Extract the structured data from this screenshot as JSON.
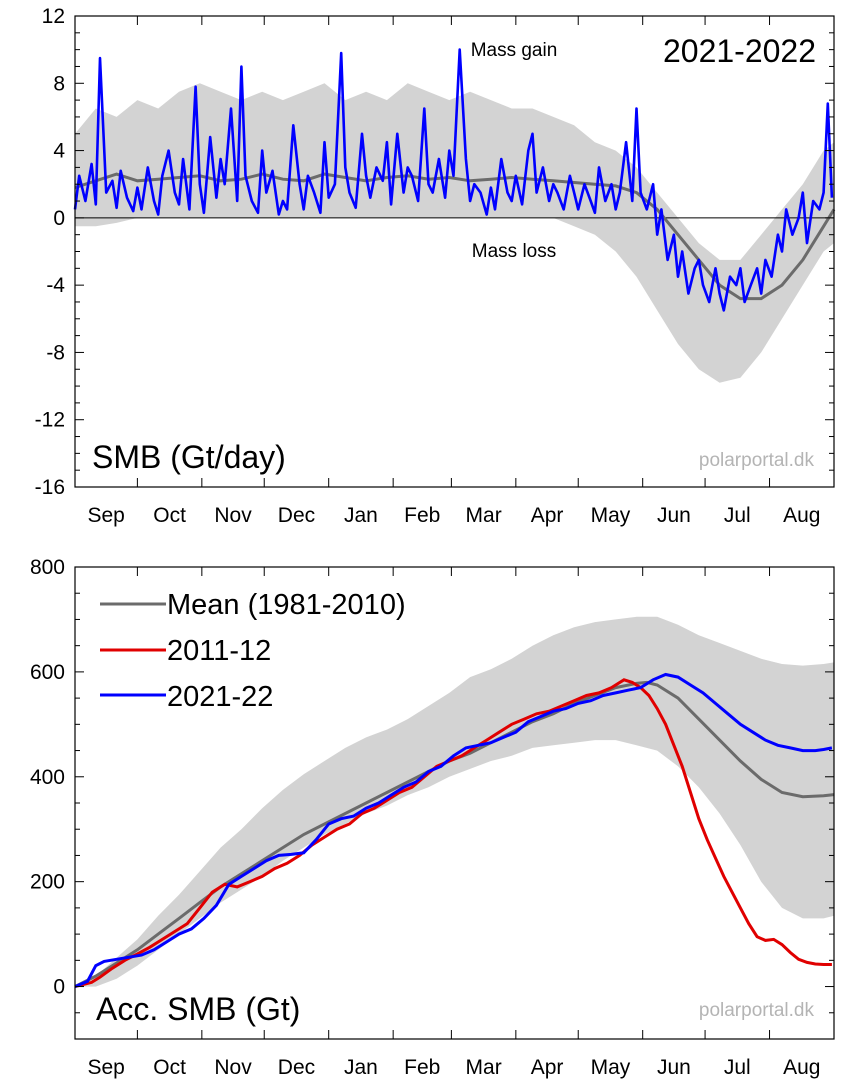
{
  "meta": {
    "source_label": "polarportal.dk"
  },
  "colors": {
    "band": "#d3d3d3",
    "mean": "#6b6b6b",
    "recent": "#0000ff",
    "y2012": "#e00000",
    "axis": "#000000",
    "watermark": "#b4b4b4"
  },
  "top_panel": {
    "title": "SMB (Gt/day)",
    "season": "2021-2022",
    "gain_label": "Mass gain",
    "loss_label": "Mass loss",
    "watermark": "polarportal.dk"
  },
  "bottom_panel": {
    "title": "Acc. SMB (Gt)",
    "watermark": "polarportal.dk",
    "legend": [
      "Mean (1981-2010)",
      "2011-12",
      "2021-22"
    ]
  },
  "chart_data": [
    {
      "type": "line",
      "title": "SMB (Gt/day)",
      "x_unit": "day of season (0 = 1 Sep)",
      "xlim": [
        0,
        365
      ],
      "ylim": [
        -16,
        12
      ],
      "yticks": [
        -16,
        -12,
        -8,
        -4,
        0,
        4,
        8,
        12
      ],
      "month_labels": [
        "Sep",
        "Oct",
        "Nov",
        "Dec",
        "Jan",
        "Feb",
        "Mar",
        "Apr",
        "May",
        "Jun",
        "Jul",
        "Aug"
      ],
      "month_starts": [
        0,
        30,
        61,
        91,
        122,
        153,
        181,
        212,
        242,
        273,
        303,
        334,
        365
      ],
      "annotations": [
        "Mass gain",
        "Mass loss",
        "2021-2022"
      ],
      "series": [
        {
          "name": "",
          "style": "envelope",
          "x": [
            0,
            10,
            20,
            30,
            40,
            50,
            60,
            70,
            80,
            90,
            100,
            110,
            120,
            130,
            140,
            150,
            160,
            170,
            180,
            190,
            200,
            210,
            220,
            230,
            240,
            250,
            260,
            270,
            280,
            290,
            300,
            310,
            320,
            330,
            340,
            350,
            360,
            365
          ],
          "upper": [
            5,
            6.5,
            6,
            7,
            6.5,
            7.5,
            8,
            7.5,
            7,
            7.5,
            7,
            7.5,
            8,
            7,
            7.5,
            7,
            8,
            7.5,
            7,
            7.5,
            7,
            6.5,
            6.5,
            6,
            5.5,
            4.5,
            4,
            3,
            1.5,
            0,
            -1.5,
            -2.5,
            -2.5,
            -1,
            0.5,
            2,
            4,
            4.5
          ],
          "lower": [
            -0.5,
            -0.5,
            -0.3,
            0,
            0,
            0,
            0,
            0,
            0,
            0,
            0,
            0,
            0,
            0,
            0,
            0,
            0,
            0,
            0,
            0,
            0,
            0,
            0,
            0,
            -0.5,
            -1,
            -2,
            -3.5,
            -5.5,
            -7.5,
            -9,
            -9.8,
            -9.5,
            -8,
            -6,
            -4,
            -2,
            -1.5
          ]
        },
        {
          "name": "",
          "x": [
            0,
            10,
            20,
            30,
            40,
            50,
            60,
            70,
            80,
            90,
            100,
            110,
            120,
            130,
            140,
            150,
            160,
            170,
            180,
            190,
            200,
            210,
            220,
            230,
            240,
            250,
            260,
            270,
            280,
            290,
            300,
            310,
            320,
            330,
            340,
            350,
            360,
            365
          ],
          "y": [
            1.8,
            2.2,
            2.6,
            2.2,
            2.3,
            2.4,
            2.5,
            2.2,
            2.3,
            2.6,
            2.3,
            2.2,
            2.6,
            2.4,
            2.2,
            2.4,
            2.5,
            2.3,
            2.4,
            2.2,
            2.3,
            2.4,
            2.3,
            2.2,
            2.1,
            2.0,
            1.9,
            1.5,
            0.5,
            -1.0,
            -2.5,
            -4.0,
            -4.8,
            -4.8,
            -4.0,
            -2.5,
            -0.5,
            0.5
          ]
        },
        {
          "name": "",
          "x": [
            0,
            2,
            5,
            8,
            10,
            12,
            15,
            18,
            20,
            22,
            25,
            28,
            30,
            32,
            35,
            38,
            40,
            42,
            45,
            48,
            50,
            52,
            55,
            58,
            60,
            62,
            65,
            68,
            70,
            72,
            75,
            78,
            80,
            82,
            85,
            88,
            90,
            92,
            95,
            98,
            100,
            102,
            105,
            108,
            110,
            112,
            115,
            118,
            120,
            122,
            125,
            128,
            130,
            132,
            135,
            138,
            140,
            142,
            145,
            148,
            150,
            152,
            155,
            158,
            160,
            162,
            165,
            168,
            170,
            172,
            175,
            178,
            180,
            182,
            185,
            188,
            190,
            192,
            195,
            198,
            200,
            202,
            205,
            208,
            210,
            212,
            215,
            218,
            220,
            222,
            225,
            228,
            230,
            232,
            235,
            238,
            240,
            242,
            245,
            248,
            250,
            252,
            255,
            258,
            260,
            262,
            265,
            268,
            270,
            272,
            275,
            278,
            280,
            282,
            285,
            288,
            290,
            292,
            295,
            298,
            300,
            302,
            305,
            308,
            310,
            312,
            315,
            318,
            320,
            322,
            325,
            328,
            330,
            332,
            335,
            338,
            340,
            342,
            345,
            348,
            350,
            352,
            355,
            358,
            360,
            362,
            364
          ],
          "y": [
            0.5,
            2.5,
            1.0,
            3.2,
            0.8,
            9.5,
            1.5,
            2.2,
            0.6,
            2.8,
            1.2,
            0.4,
            1.8,
            0.5,
            3.0,
            1.0,
            0.2,
            2.5,
            4.0,
            1.5,
            0.8,
            3.5,
            0.5,
            7.8,
            2.0,
            0.3,
            4.8,
            1.2,
            3.5,
            2.0,
            6.5,
            1.0,
            9.0,
            2.5,
            1.0,
            0.3,
            4.0,
            1.5,
            2.8,
            0.2,
            1.0,
            0.5,
            5.5,
            2.0,
            0.5,
            2.5,
            1.5,
            0.3,
            4.5,
            1.2,
            2.0,
            9.8,
            3.0,
            1.5,
            0.6,
            5.0,
            2.5,
            1.2,
            3.0,
            2.2,
            4.5,
            0.8,
            5.0,
            1.5,
            3.0,
            2.5,
            1.0,
            6.5,
            2.0,
            1.5,
            3.5,
            1.2,
            4.0,
            2.5,
            10.0,
            3.5,
            1.0,
            2.0,
            1.5,
            0.2,
            1.8,
            0.5,
            3.5,
            1.5,
            1.0,
            2.5,
            0.8,
            4.0,
            5.0,
            1.5,
            3.0,
            1.0,
            2.0,
            1.5,
            0.5,
            2.5,
            1.5,
            0.5,
            2.0,
            1.0,
            0.3,
            3.0,
            1.0,
            2.0,
            0.5,
            1.5,
            4.5,
            1.0,
            6.5,
            1.5,
            0.5,
            2.0,
            -1.0,
            0.5,
            -2.5,
            -1.0,
            -3.5,
            -2.0,
            -4.5,
            -3.0,
            -2.5,
            -4.0,
            -5.0,
            -3.0,
            -4.5,
            -5.5,
            -3.5,
            -4.0,
            -3.0,
            -5.0,
            -4.0,
            -3.0,
            -4.5,
            -2.5,
            -3.5,
            -1.0,
            -2.0,
            0.5,
            -1.0,
            0.0,
            1.5,
            -1.5,
            1.0,
            0.5,
            1.5,
            6.8,
            1.2
          ]
        }
      ]
    },
    {
      "type": "line",
      "title": "Acc. SMB (Gt)",
      "x_unit": "day of season (0 = 1 Sep)",
      "xlim": [
        0,
        365
      ],
      "ylim": [
        -100,
        800
      ],
      "yticks": [
        0,
        200,
        400,
        600,
        800
      ],
      "month_labels": [
        "Sep",
        "Oct",
        "Nov",
        "Dec",
        "Jan",
        "Feb",
        "Mar",
        "Apr",
        "May",
        "Jun",
        "Jul",
        "Aug"
      ],
      "month_starts": [
        0,
        30,
        61,
        91,
        122,
        153,
        181,
        212,
        242,
        273,
        303,
        334,
        365
      ],
      "legend_position": "top-left",
      "series": [
        {
          "name": "",
          "style": "envelope",
          "x": [
            0,
            10,
            20,
            30,
            40,
            50,
            60,
            70,
            80,
            90,
            100,
            110,
            120,
            130,
            140,
            150,
            160,
            170,
            180,
            190,
            200,
            210,
            220,
            230,
            240,
            250,
            260,
            270,
            280,
            290,
            300,
            310,
            320,
            330,
            340,
            350,
            360,
            365
          ],
          "upper": [
            0,
            20,
            55,
            90,
            135,
            175,
            220,
            265,
            300,
            340,
            375,
            405,
            430,
            455,
            475,
            490,
            510,
            535,
            560,
            590,
            605,
            625,
            650,
            670,
            685,
            695,
            700,
            705,
            705,
            690,
            670,
            655,
            640,
            625,
            615,
            612,
            615,
            618
          ],
          "lower": [
            0,
            0,
            15,
            40,
            70,
            100,
            130,
            160,
            185,
            210,
            240,
            265,
            290,
            310,
            330,
            345,
            365,
            380,
            400,
            415,
            430,
            440,
            455,
            460,
            465,
            470,
            470,
            460,
            450,
            420,
            380,
            330,
            270,
            200,
            150,
            130,
            130,
            135
          ]
        },
        {
          "name": "Mean (1981-2010)",
          "x": [
            0,
            10,
            20,
            30,
            40,
            50,
            60,
            70,
            80,
            90,
            100,
            110,
            120,
            130,
            140,
            150,
            160,
            170,
            180,
            190,
            200,
            210,
            220,
            230,
            240,
            250,
            260,
            270,
            275,
            280,
            290,
            300,
            310,
            320,
            330,
            340,
            350,
            360,
            365
          ],
          "y": [
            0,
            20,
            45,
            70,
            100,
            130,
            160,
            190,
            215,
            240,
            265,
            290,
            310,
            330,
            350,
            370,
            390,
            410,
            430,
            445,
            465,
            485,
            505,
            520,
            540,
            555,
            570,
            578,
            580,
            575,
            550,
            510,
            470,
            430,
            395,
            370,
            362,
            364,
            366
          ]
        },
        {
          "name": "2011-12",
          "x": [
            0,
            8,
            12,
            18,
            24,
            30,
            36,
            42,
            48,
            54,
            60,
            66,
            72,
            78,
            84,
            90,
            96,
            102,
            108,
            114,
            120,
            126,
            132,
            138,
            144,
            150,
            156,
            162,
            168,
            174,
            180,
            186,
            192,
            198,
            204,
            210,
            216,
            222,
            228,
            234,
            240,
            246,
            252,
            258,
            264,
            268,
            272,
            276,
            280,
            284,
            288,
            292,
            296,
            300,
            304,
            308,
            312,
            316,
            320,
            324,
            328,
            332,
            336,
            340,
            344,
            348,
            352,
            356,
            360,
            364
          ],
          "y": [
            0,
            8,
            18,
            35,
            50,
            62,
            75,
            90,
            105,
            120,
            150,
            180,
            195,
            190,
            200,
            210,
            225,
            235,
            250,
            270,
            285,
            300,
            310,
            330,
            340,
            355,
            370,
            380,
            400,
            420,
            430,
            440,
            455,
            470,
            485,
            500,
            510,
            520,
            525,
            535,
            545,
            555,
            560,
            570,
            585,
            580,
            570,
            555,
            530,
            500,
            460,
            420,
            370,
            320,
            280,
            245,
            210,
            180,
            150,
            120,
            95,
            88,
            90,
            80,
            65,
            52,
            46,
            43,
            42,
            42
          ]
        },
        {
          "name": "2021-22",
          "x": [
            0,
            6,
            10,
            14,
            20,
            26,
            32,
            38,
            44,
            50,
            56,
            62,
            68,
            74,
            80,
            86,
            92,
            98,
            104,
            110,
            116,
            122,
            128,
            134,
            140,
            146,
            152,
            158,
            164,
            170,
            176,
            182,
            188,
            194,
            200,
            206,
            212,
            218,
            224,
            230,
            236,
            242,
            248,
            254,
            260,
            266,
            272,
            278,
            284,
            290,
            296,
            302,
            308,
            314,
            320,
            326,
            332,
            338,
            344,
            350,
            356,
            360,
            364
          ],
          "y": [
            0,
            10,
            40,
            48,
            52,
            56,
            60,
            70,
            85,
            100,
            110,
            130,
            155,
            195,
            210,
            225,
            240,
            250,
            252,
            255,
            280,
            310,
            320,
            325,
            340,
            350,
            365,
            380,
            390,
            410,
            420,
            440,
            455,
            460,
            465,
            475,
            485,
            505,
            515,
            525,
            530,
            540,
            545,
            555,
            560,
            565,
            570,
            585,
            595,
            590,
            575,
            560,
            540,
            520,
            500,
            485,
            470,
            460,
            455,
            450,
            450,
            452,
            455
          ]
        }
      ]
    }
  ]
}
